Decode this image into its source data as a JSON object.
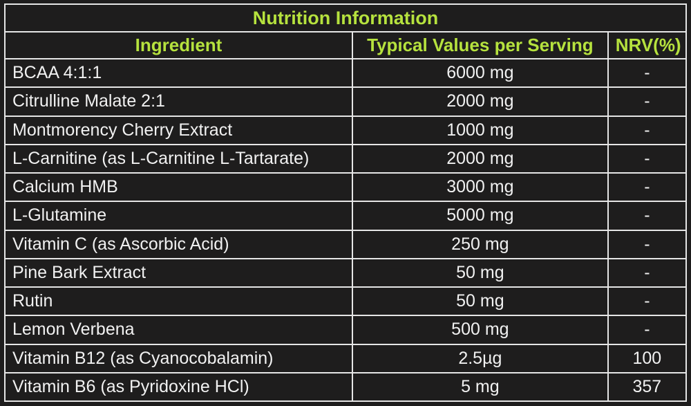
{
  "table": {
    "title": "Nutrition Information",
    "headers": {
      "ingredient": "Ingredient",
      "typical": "Typical Values per Serving",
      "nrv": "NRV(%)"
    },
    "rows": [
      {
        "ingredient": "BCAA 4:1:1",
        "value": "6000 mg",
        "nrv": "-"
      },
      {
        "ingredient": "Citrulline Malate 2:1",
        "value": "2000 mg",
        "nrv": "-"
      },
      {
        "ingredient": "Montmorency Cherry Extract",
        "value": "1000 mg",
        "nrv": "-"
      },
      {
        "ingredient": "L-Carnitine (as L-Carnitine L-Tartarate)",
        "value": "2000 mg",
        "nrv": "-"
      },
      {
        "ingredient": "Calcium HMB",
        "value": "3000 mg",
        "nrv": "-"
      },
      {
        "ingredient": "L-Glutamine",
        "value": "5000 mg",
        "nrv": "-"
      },
      {
        "ingredient": "Vitamin C (as Ascorbic Acid)",
        "value": "250 mg",
        "nrv": "-"
      },
      {
        "ingredient": "Pine Bark Extract",
        "value": "50 mg",
        "nrv": "-"
      },
      {
        "ingredient": "Rutin",
        "value": "50 mg",
        "nrv": "-"
      },
      {
        "ingredient": "Lemon Verbena",
        "value": "500 mg",
        "nrv": "-"
      },
      {
        "ingredient": "Vitamin B12 (as Cyanocobalamin)",
        "value": "2.5µg",
        "nrv": "100"
      },
      {
        "ingredient": "Vitamin B6 (as Pyridoxine HCl)",
        "value": "5 mg",
        "nrv": "357"
      }
    ]
  },
  "colors": {
    "background": "#1e1d1d",
    "heading_accent": "#b6e23e",
    "text": "#f1f1f1",
    "border": "#e6e6e6"
  }
}
